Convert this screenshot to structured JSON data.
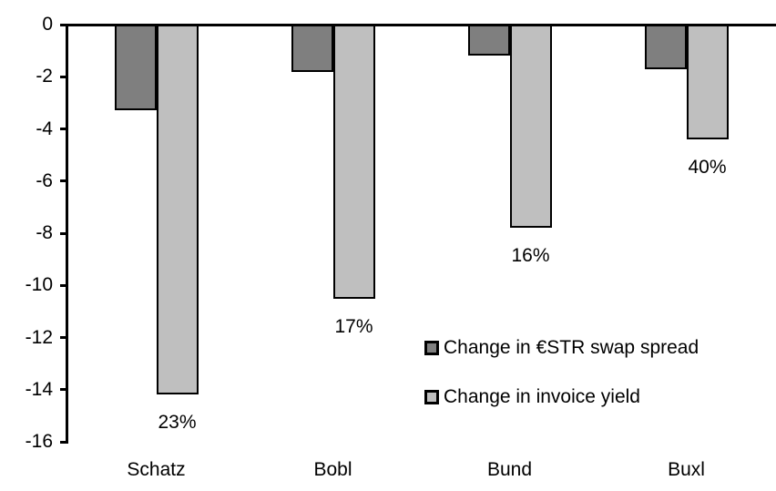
{
  "chart_data": {
    "type": "bar",
    "categories": [
      "Schatz",
      "Bobl",
      "Bund",
      "Buxl"
    ],
    "series": [
      {
        "name": "Change in €STR swap spread",
        "color": "#7f7f7f",
        "values": [
          -3.3,
          -1.8,
          -1.2,
          -1.7
        ]
      },
      {
        "name": "Change in invoice yield",
        "color": "#bfbfbf",
        "values": [
          -14.2,
          -10.5,
          -7.8,
          -4.4
        ],
        "point_labels": [
          "23%",
          "17%",
          "16%",
          "40%"
        ]
      }
    ],
    "title": "",
    "xlabel": "",
    "ylabel": "",
    "ylim": [
      -16,
      0
    ],
    "yticks": [
      0,
      -2,
      -4,
      -6,
      -8,
      -10,
      -12,
      -14,
      -16
    ],
    "grid": false,
    "legend_position": "inside-center-right",
    "bar_outline_color": "#000000",
    "axis_color": "#000000",
    "background_color": "#ffffff"
  }
}
